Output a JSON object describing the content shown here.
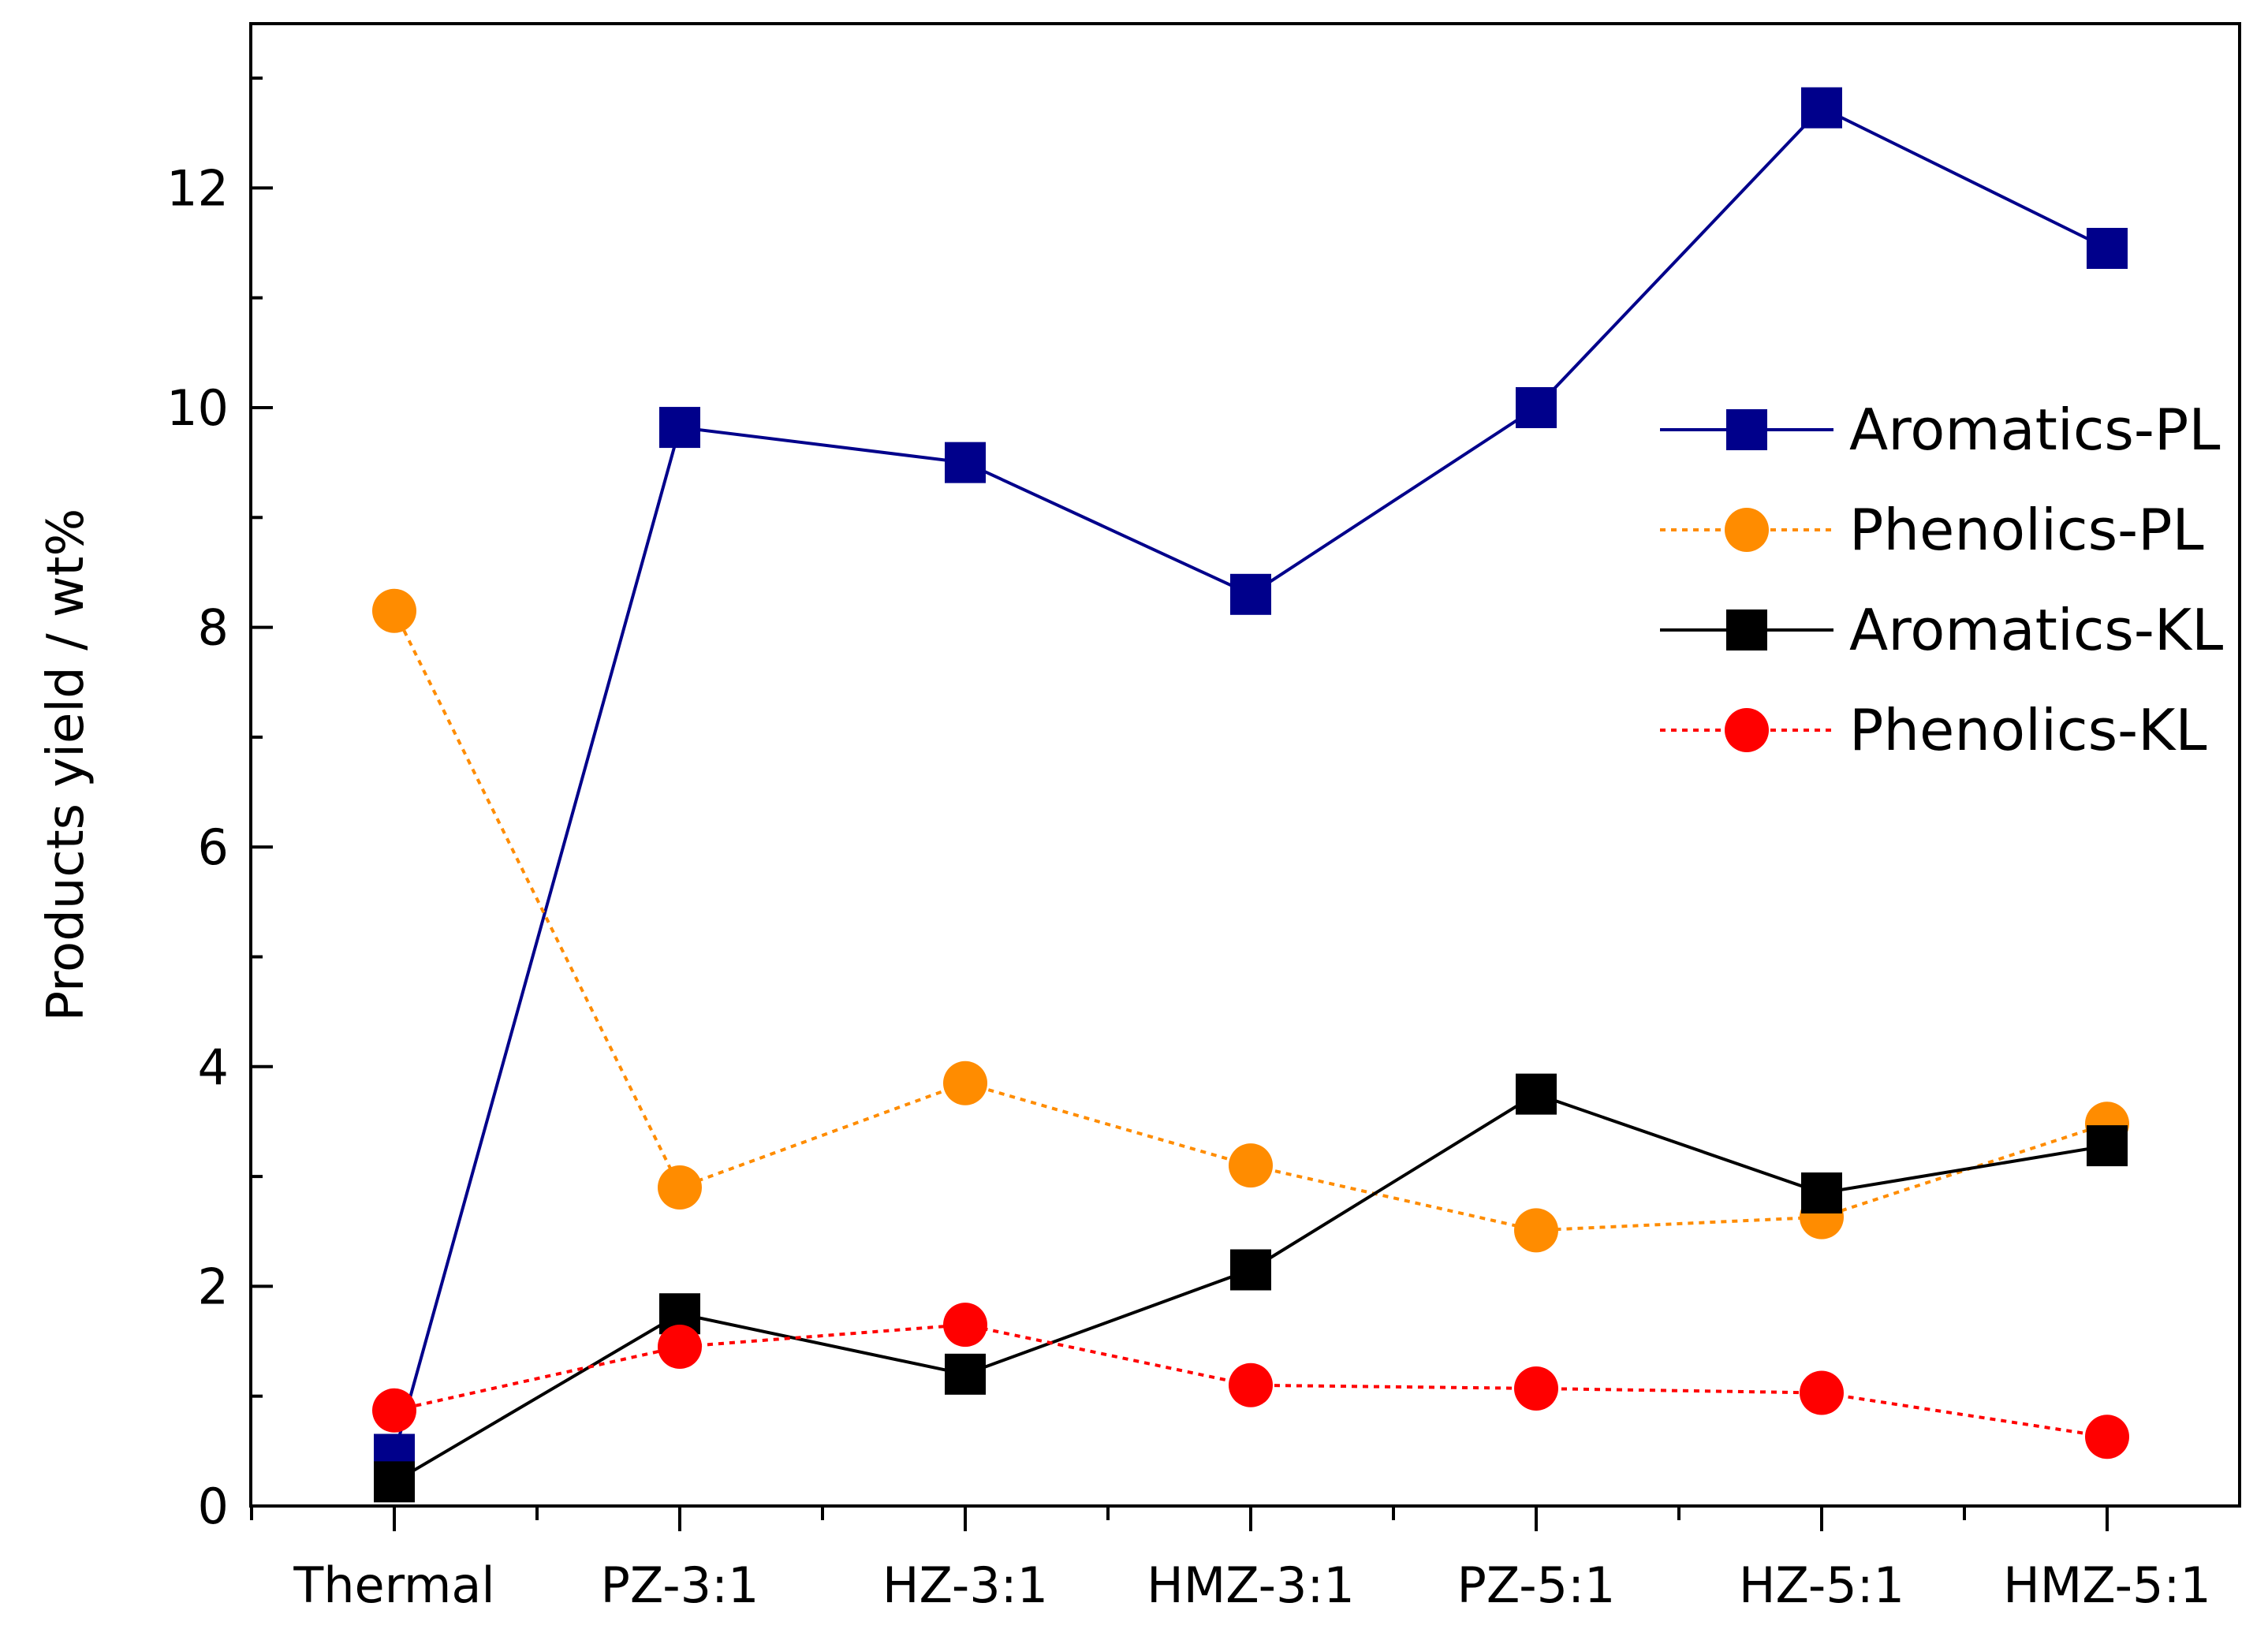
{
  "chart_data": {
    "type": "line",
    "title": "",
    "xlabel": "",
    "ylabel": "Products yield / wt%",
    "categories": [
      "Thermal",
      "PZ-3:1",
      "HZ-3:1",
      "HMZ-3:1",
      "PZ-5:1",
      "HZ-5:1",
      "HMZ-5:1"
    ],
    "ylim": [
      0,
      13.2
    ],
    "yticks": [
      0,
      2,
      4,
      6,
      8,
      10,
      12
    ],
    "grid": false,
    "legend_position": "right",
    "series": [
      {
        "name": "Aromatics-PL",
        "values": [
          0.47,
          9.82,
          9.5,
          8.3,
          10.0,
          12.73,
          11.45
        ],
        "color": "#00008b",
        "marker": "square",
        "line": "solid"
      },
      {
        "name": "Phenolics-PL",
        "values": [
          8.15,
          2.9,
          3.85,
          3.1,
          2.51,
          2.63,
          3.48
        ],
        "color": "#ff8c00",
        "marker": "circle",
        "line": "dotted"
      },
      {
        "name": "Aromatics-KL",
        "values": [
          0.22,
          1.75,
          1.2,
          2.15,
          3.75,
          2.85,
          3.28
        ],
        "color": "#000000",
        "marker": "square",
        "line": "solid"
      },
      {
        "name": "Phenolics-KL",
        "values": [
          0.87,
          1.45,
          1.65,
          1.1,
          1.07,
          1.03,
          0.63
        ],
        "color": "#ff0000",
        "marker": "circle",
        "line": "dotted"
      }
    ]
  }
}
